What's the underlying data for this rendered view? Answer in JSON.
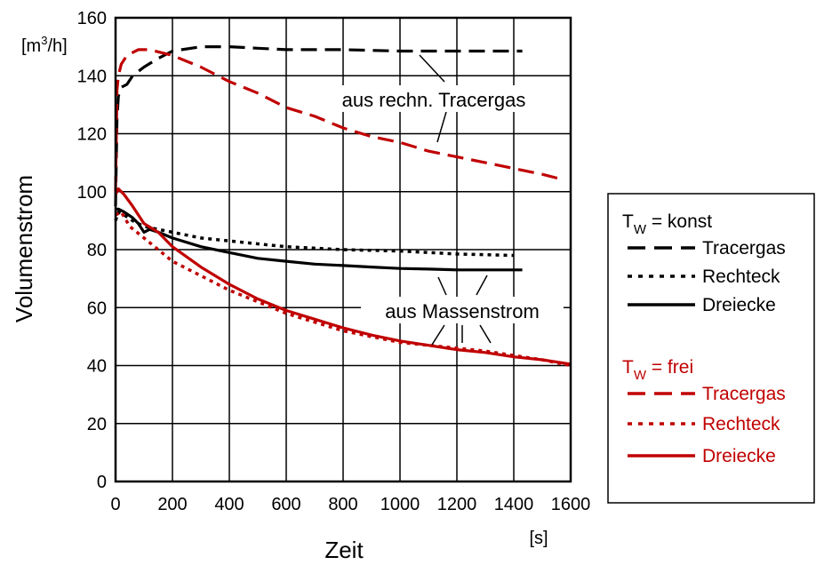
{
  "chart_data": {
    "type": "line",
    "xlabel": "Zeit",
    "xunit": "[s]",
    "ylabel": "Volumenstrom",
    "yunit_prefix": "[m",
    "yunit_sup": "3",
    "yunit_suffix": "/h]",
    "xlim": [
      0,
      1600
    ],
    "ylim": [
      0,
      160
    ],
    "x_ticks": [
      0,
      200,
      400,
      600,
      800,
      1000,
      1200,
      1400,
      1600
    ],
    "y_ticks": [
      0,
      20,
      40,
      60,
      80,
      100,
      120,
      140,
      160
    ],
    "grid": true,
    "legend_position": "right",
    "annotations": [
      {
        "text": "aus rechn. Tracergas",
        "x": 1000,
        "y": 133
      },
      {
        "text": "aus Massenstrom",
        "x": 960,
        "y": 60
      }
    ],
    "legend_groups": [
      {
        "label_main": "T",
        "label_sub": "W",
        "label_rest": " = konst",
        "color": "#000000"
      },
      {
        "label_main": "T",
        "label_sub": "W",
        "label_rest": " = frei",
        "color": "#c00000"
      }
    ],
    "series": [
      {
        "name": "Tracergas",
        "group": 0,
        "color": "#000000",
        "style": "dash",
        "points": [
          [
            0,
            95
          ],
          [
            5,
            125
          ],
          [
            10,
            133
          ],
          [
            20,
            136
          ],
          [
            40,
            137
          ],
          [
            60,
            140
          ],
          [
            100,
            143
          ],
          [
            150,
            146
          ],
          [
            200,
            148.5
          ],
          [
            300,
            150
          ],
          [
            400,
            150
          ],
          [
            500,
            149.5
          ],
          [
            600,
            149
          ],
          [
            800,
            149
          ],
          [
            1000,
            148.5
          ],
          [
            1200,
            148.5
          ],
          [
            1400,
            148.5
          ],
          [
            1430,
            148.5
          ]
        ]
      },
      {
        "name": "Rechteck",
        "group": 0,
        "color": "#000000",
        "style": "dot",
        "points": [
          [
            0,
            90
          ],
          [
            10,
            93
          ],
          [
            30,
            92
          ],
          [
            60,
            90
          ],
          [
            100,
            88
          ],
          [
            150,
            87
          ],
          [
            200,
            86
          ],
          [
            300,
            84
          ],
          [
            400,
            83
          ],
          [
            500,
            82
          ],
          [
            600,
            81
          ],
          [
            800,
            80
          ],
          [
            1000,
            79.5
          ],
          [
            1200,
            78.5
          ],
          [
            1400,
            78
          ]
        ]
      },
      {
        "name": "Dreiecke",
        "group": 0,
        "color": "#000000",
        "style": "solid",
        "points": [
          [
            0,
            94
          ],
          [
            10,
            94
          ],
          [
            30,
            93
          ],
          [
            60,
            91
          ],
          [
            80,
            89
          ],
          [
            100,
            86
          ],
          [
            120,
            87
          ],
          [
            150,
            86
          ],
          [
            200,
            84
          ],
          [
            300,
            81
          ],
          [
            400,
            79
          ],
          [
            500,
            77
          ],
          [
            600,
            76
          ],
          [
            700,
            75
          ],
          [
            800,
            74.5
          ],
          [
            900,
            74
          ],
          [
            1000,
            73.5
          ],
          [
            1100,
            73.3
          ],
          [
            1200,
            73
          ],
          [
            1300,
            73
          ],
          [
            1430,
            73
          ]
        ]
      },
      {
        "name": "Tracergas",
        "group": 1,
        "color": "#c00000",
        "style": "dash",
        "points": [
          [
            0,
            100
          ],
          [
            5,
            135
          ],
          [
            10,
            140
          ],
          [
            20,
            144
          ],
          [
            40,
            147
          ],
          [
            80,
            149
          ],
          [
            120,
            149
          ],
          [
            200,
            147
          ],
          [
            300,
            143
          ],
          [
            400,
            138
          ],
          [
            500,
            134
          ],
          [
            600,
            129
          ],
          [
            700,
            126
          ],
          [
            800,
            122
          ],
          [
            900,
            119
          ],
          [
            1000,
            117
          ],
          [
            1100,
            114
          ],
          [
            1200,
            112
          ],
          [
            1300,
            110
          ],
          [
            1400,
            108
          ],
          [
            1500,
            106
          ],
          [
            1580,
            104
          ]
        ]
      },
      {
        "name": "Rechteck",
        "group": 1,
        "color": "#c00000",
        "style": "dot",
        "points": [
          [
            0,
            92
          ],
          [
            20,
            93
          ],
          [
            50,
            88
          ],
          [
            100,
            84
          ],
          [
            150,
            80
          ],
          [
            200,
            76
          ],
          [
            300,
            71
          ],
          [
            400,
            66
          ],
          [
            500,
            62
          ],
          [
            600,
            58
          ],
          [
            700,
            55
          ],
          [
            800,
            52
          ],
          [
            900,
            50
          ],
          [
            1000,
            48
          ],
          [
            1100,
            47
          ],
          [
            1200,
            46
          ],
          [
            1300,
            45
          ],
          [
            1400,
            43.5
          ],
          [
            1500,
            42
          ],
          [
            1600,
            40
          ]
        ]
      },
      {
        "name": "Dreiecke",
        "group": 1,
        "color": "#c00000",
        "style": "solid",
        "points": [
          [
            0,
            99
          ],
          [
            10,
            101
          ],
          [
            30,
            99
          ],
          [
            60,
            95
          ],
          [
            100,
            89
          ],
          [
            150,
            86
          ],
          [
            200,
            81
          ],
          [
            300,
            74
          ],
          [
            400,
            68
          ],
          [
            500,
            63
          ],
          [
            600,
            59
          ],
          [
            700,
            56
          ],
          [
            800,
            53
          ],
          [
            900,
            50.5
          ],
          [
            1000,
            48.5
          ],
          [
            1100,
            47
          ],
          [
            1200,
            45.5
          ],
          [
            1300,
            44.5
          ],
          [
            1400,
            43
          ],
          [
            1500,
            42
          ],
          [
            1600,
            40.5
          ]
        ]
      }
    ]
  }
}
